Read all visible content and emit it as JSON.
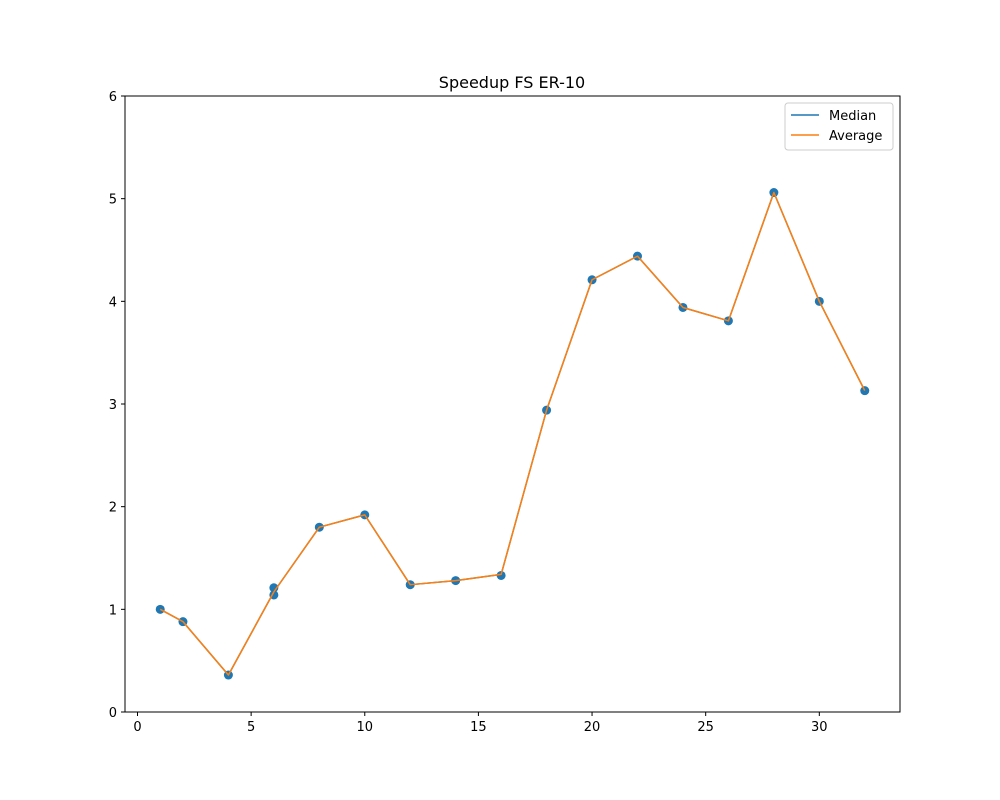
{
  "chart_data": {
    "type": "line",
    "title": "Speedup FS ER-10",
    "xlabel": "",
    "ylabel": "",
    "xlim": [
      -0.55,
      33.55
    ],
    "ylim": [
      0,
      6
    ],
    "xticks": [
      0,
      5,
      10,
      15,
      20,
      25,
      30
    ],
    "yticks": [
      0,
      1,
      2,
      3,
      4,
      5,
      6
    ],
    "grid": false,
    "legend_position": "top-right",
    "colors": {
      "median": "#1f77b4",
      "average": "#ff7f0e",
      "points": "#1f77b4"
    },
    "series": [
      {
        "name": "Median",
        "x": [
          1,
          2,
          4,
          6,
          8,
          10,
          12,
          14,
          16,
          18,
          20,
          22,
          24,
          26,
          28,
          30,
          32
        ],
        "values": [
          1.0,
          0.88,
          0.36,
          1.17,
          1.8,
          1.92,
          1.24,
          1.28,
          1.34,
          2.94,
          4.21,
          4.44,
          3.94,
          3.81,
          5.06,
          4.0,
          3.13
        ]
      },
      {
        "name": "Average",
        "x": [
          1,
          2,
          4,
          6,
          8,
          10,
          12,
          14,
          16,
          18,
          20,
          22,
          24,
          26,
          28,
          30,
          32
        ],
        "values": [
          1.0,
          0.88,
          0.36,
          1.17,
          1.8,
          1.92,
          1.24,
          1.28,
          1.34,
          2.94,
          4.21,
          4.44,
          3.94,
          3.81,
          5.06,
          4.0,
          3.13
        ]
      }
    ],
    "scatter_points": [
      {
        "x": 1,
        "y": 1.0
      },
      {
        "x": 2,
        "y": 0.88
      },
      {
        "x": 4,
        "y": 0.36
      },
      {
        "x": 6,
        "y": 1.21
      },
      {
        "x": 6,
        "y": 1.14
      },
      {
        "x": 8,
        "y": 1.8
      },
      {
        "x": 10,
        "y": 1.92
      },
      {
        "x": 12,
        "y": 1.24
      },
      {
        "x": 14,
        "y": 1.28
      },
      {
        "x": 16,
        "y": 1.33
      },
      {
        "x": 18,
        "y": 2.94
      },
      {
        "x": 20,
        "y": 4.21
      },
      {
        "x": 22,
        "y": 4.44
      },
      {
        "x": 24,
        "y": 3.94
      },
      {
        "x": 26,
        "y": 3.81
      },
      {
        "x": 28,
        "y": 5.06
      },
      {
        "x": 30,
        "y": 4.0
      },
      {
        "x": 32,
        "y": 3.13
      }
    ]
  }
}
